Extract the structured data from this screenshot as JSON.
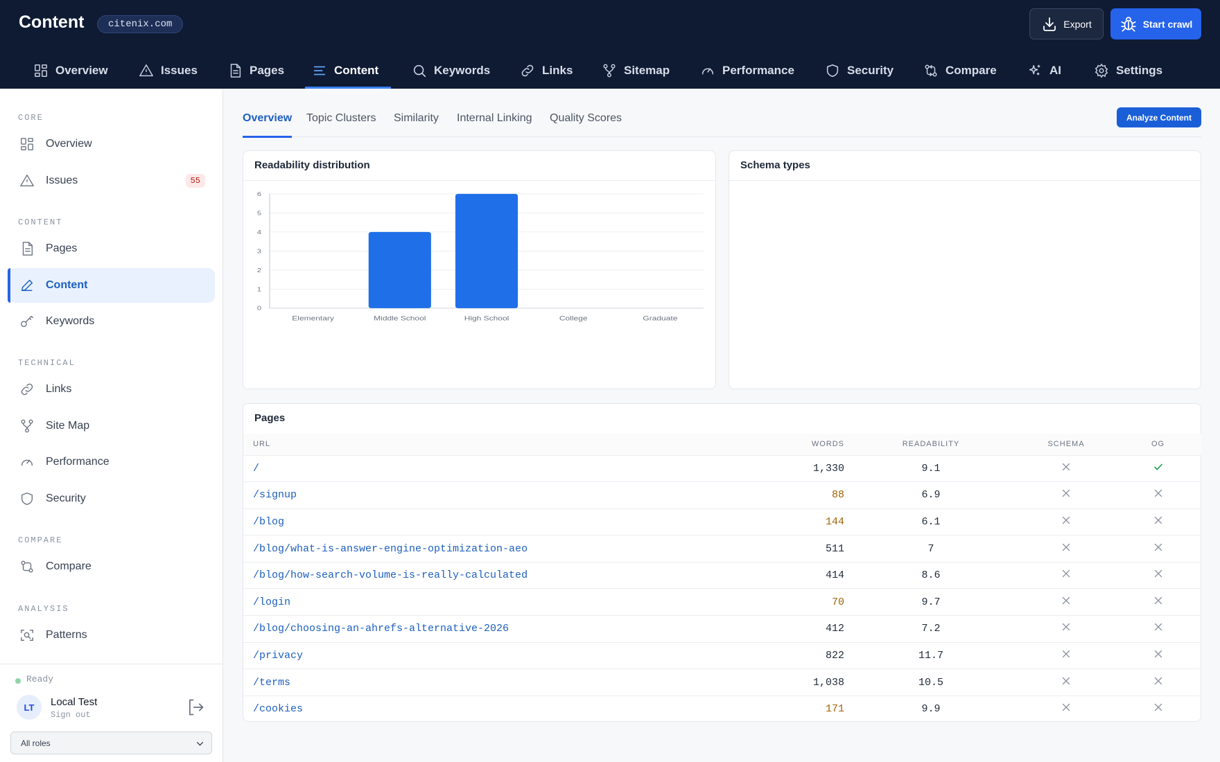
{
  "header": {
    "title": "Content",
    "domain": "citenix.com",
    "export_label": "Export",
    "start_crawl_label": "Start crawl"
  },
  "topnav": [
    {
      "label": "Overview",
      "icon": "grid-icon"
    },
    {
      "label": "Issues",
      "icon": "warning-icon"
    },
    {
      "label": "Pages",
      "icon": "document-icon"
    },
    {
      "label": "Content",
      "icon": "lines-icon",
      "active": true
    },
    {
      "label": "Keywords",
      "icon": "search-icon"
    },
    {
      "label": "Links",
      "icon": "link-icon"
    },
    {
      "label": "Sitemap",
      "icon": "sitemap-icon"
    },
    {
      "label": "Performance",
      "icon": "gauge-icon"
    },
    {
      "label": "Security",
      "icon": "shield-icon"
    },
    {
      "label": "Compare",
      "icon": "compare-icon"
    },
    {
      "label": "AI",
      "icon": "sparkle-icon"
    },
    {
      "label": "Settings",
      "icon": "gear-icon"
    }
  ],
  "sidebar": {
    "sections": {
      "core": "CORE",
      "content": "CONTENT",
      "technical": "TECHNICAL",
      "compare": "COMPARE",
      "analysis": "ANALYSIS"
    },
    "items": {
      "overview": "Overview",
      "issues": "Issues",
      "issues_count": "55",
      "pages": "Pages",
      "content": "Content",
      "keywords": "Keywords",
      "links": "Links",
      "sitemap": "Site Map",
      "performance": "Performance",
      "security": "Security",
      "compare": "Compare",
      "patterns": "Patterns"
    },
    "footer": {
      "status": "Ready",
      "avatar_initials": "LT",
      "user_name": "Local Test",
      "sign_out": "Sign out",
      "role_select": "All roles"
    }
  },
  "tabs": [
    "Overview",
    "Topic Clusters",
    "Similarity",
    "Internal Linking",
    "Quality Scores"
  ],
  "analyze_button": "Analyze Content",
  "readability_card": {
    "title": "Readability distribution"
  },
  "schema_card": {
    "title": "Schema types"
  },
  "chart_data": {
    "type": "bar",
    "categories": [
      "Elementary",
      "Middle School",
      "High School",
      "College",
      "Graduate"
    ],
    "values": [
      0,
      4,
      6,
      0,
      0
    ],
    "ylim": [
      0,
      6
    ],
    "yticks": [
      0,
      1,
      2,
      3,
      4,
      5,
      6
    ],
    "grid": true,
    "color": "#1f6fe8"
  },
  "pages_table": {
    "title": "Pages",
    "columns": {
      "url": "URL",
      "words": "WORDS",
      "readability": "READABILITY",
      "schema": "SCHEMA",
      "og": "OG"
    },
    "rows": [
      {
        "url": "/",
        "words": "1,330",
        "readability": "9.1",
        "schema": false,
        "og": true,
        "low": false
      },
      {
        "url": "/signup",
        "words": "88",
        "readability": "6.9",
        "schema": false,
        "og": false,
        "low": true
      },
      {
        "url": "/blog",
        "words": "144",
        "readability": "6.1",
        "schema": false,
        "og": false,
        "low": true
      },
      {
        "url": "/blog/what-is-answer-engine-optimization-aeo",
        "words": "511",
        "readability": "7",
        "schema": false,
        "og": false,
        "low": false
      },
      {
        "url": "/blog/how-search-volume-is-really-calculated",
        "words": "414",
        "readability": "8.6",
        "schema": false,
        "og": false,
        "low": false
      },
      {
        "url": "/login",
        "words": "70",
        "readability": "9.7",
        "schema": false,
        "og": false,
        "low": true
      },
      {
        "url": "/blog/choosing-an-ahrefs-alternative-2026",
        "words": "412",
        "readability": "7.2",
        "schema": false,
        "og": false,
        "low": false
      },
      {
        "url": "/privacy",
        "words": "822",
        "readability": "11.7",
        "schema": false,
        "og": false,
        "low": false
      },
      {
        "url": "/terms",
        "words": "1,038",
        "readability": "10.5",
        "schema": false,
        "og": false,
        "low": false
      },
      {
        "url": "/cookies",
        "words": "171",
        "readability": "9.9",
        "schema": false,
        "og": false,
        "low": true
      }
    ]
  }
}
